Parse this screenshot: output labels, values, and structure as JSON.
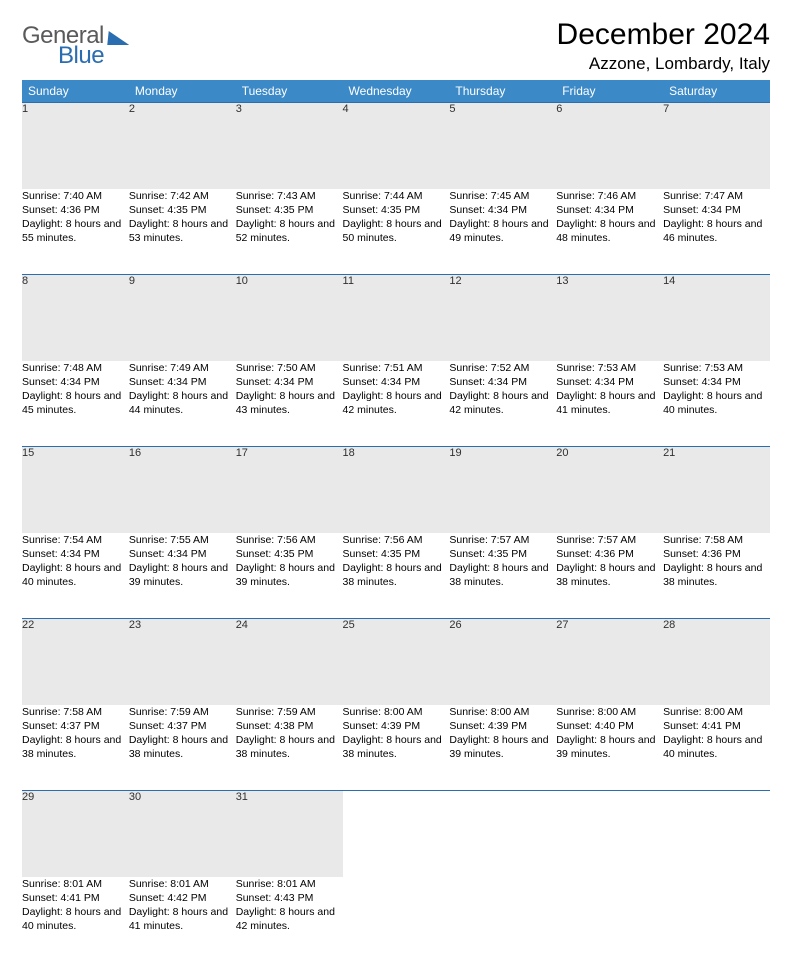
{
  "logo": {
    "word1": "General",
    "word2": "Blue"
  },
  "title": "December 2024",
  "location": "Azzone, Lombardy, Italy",
  "colors": {
    "header_bg": "#3b89c7",
    "header_text": "#ffffff",
    "rule": "#2a6db0",
    "daynum_bg": "#e9e9e9",
    "logo_gray": "#5a5a5a",
    "logo_blue": "#2a6db0"
  },
  "day_headers": [
    "Sunday",
    "Monday",
    "Tuesday",
    "Wednesday",
    "Thursday",
    "Friday",
    "Saturday"
  ],
  "weeks": [
    [
      {
        "n": "1",
        "sr": "7:40 AM",
        "ss": "4:36 PM",
        "dl": "8 hours and 55 minutes."
      },
      {
        "n": "2",
        "sr": "7:42 AM",
        "ss": "4:35 PM",
        "dl": "8 hours and 53 minutes."
      },
      {
        "n": "3",
        "sr": "7:43 AM",
        "ss": "4:35 PM",
        "dl": "8 hours and 52 minutes."
      },
      {
        "n": "4",
        "sr": "7:44 AM",
        "ss": "4:35 PM",
        "dl": "8 hours and 50 minutes."
      },
      {
        "n": "5",
        "sr": "7:45 AM",
        "ss": "4:34 PM",
        "dl": "8 hours and 49 minutes."
      },
      {
        "n": "6",
        "sr": "7:46 AM",
        "ss": "4:34 PM",
        "dl": "8 hours and 48 minutes."
      },
      {
        "n": "7",
        "sr": "7:47 AM",
        "ss": "4:34 PM",
        "dl": "8 hours and 46 minutes."
      }
    ],
    [
      {
        "n": "8",
        "sr": "7:48 AM",
        "ss": "4:34 PM",
        "dl": "8 hours and 45 minutes."
      },
      {
        "n": "9",
        "sr": "7:49 AM",
        "ss": "4:34 PM",
        "dl": "8 hours and 44 minutes."
      },
      {
        "n": "10",
        "sr": "7:50 AM",
        "ss": "4:34 PM",
        "dl": "8 hours and 43 minutes."
      },
      {
        "n": "11",
        "sr": "7:51 AM",
        "ss": "4:34 PM",
        "dl": "8 hours and 42 minutes."
      },
      {
        "n": "12",
        "sr": "7:52 AM",
        "ss": "4:34 PM",
        "dl": "8 hours and 42 minutes."
      },
      {
        "n": "13",
        "sr": "7:53 AM",
        "ss": "4:34 PM",
        "dl": "8 hours and 41 minutes."
      },
      {
        "n": "14",
        "sr": "7:53 AM",
        "ss": "4:34 PM",
        "dl": "8 hours and 40 minutes."
      }
    ],
    [
      {
        "n": "15",
        "sr": "7:54 AM",
        "ss": "4:34 PM",
        "dl": "8 hours and 40 minutes."
      },
      {
        "n": "16",
        "sr": "7:55 AM",
        "ss": "4:34 PM",
        "dl": "8 hours and 39 minutes."
      },
      {
        "n": "17",
        "sr": "7:56 AM",
        "ss": "4:35 PM",
        "dl": "8 hours and 39 minutes."
      },
      {
        "n": "18",
        "sr": "7:56 AM",
        "ss": "4:35 PM",
        "dl": "8 hours and 38 minutes."
      },
      {
        "n": "19",
        "sr": "7:57 AM",
        "ss": "4:35 PM",
        "dl": "8 hours and 38 minutes."
      },
      {
        "n": "20",
        "sr": "7:57 AM",
        "ss": "4:36 PM",
        "dl": "8 hours and 38 minutes."
      },
      {
        "n": "21",
        "sr": "7:58 AM",
        "ss": "4:36 PM",
        "dl": "8 hours and 38 minutes."
      }
    ],
    [
      {
        "n": "22",
        "sr": "7:58 AM",
        "ss": "4:37 PM",
        "dl": "8 hours and 38 minutes."
      },
      {
        "n": "23",
        "sr": "7:59 AM",
        "ss": "4:37 PM",
        "dl": "8 hours and 38 minutes."
      },
      {
        "n": "24",
        "sr": "7:59 AM",
        "ss": "4:38 PM",
        "dl": "8 hours and 38 minutes."
      },
      {
        "n": "25",
        "sr": "8:00 AM",
        "ss": "4:39 PM",
        "dl": "8 hours and 38 minutes."
      },
      {
        "n": "26",
        "sr": "8:00 AM",
        "ss": "4:39 PM",
        "dl": "8 hours and 39 minutes."
      },
      {
        "n": "27",
        "sr": "8:00 AM",
        "ss": "4:40 PM",
        "dl": "8 hours and 39 minutes."
      },
      {
        "n": "28",
        "sr": "8:00 AM",
        "ss": "4:41 PM",
        "dl": "8 hours and 40 minutes."
      }
    ],
    [
      {
        "n": "29",
        "sr": "8:01 AM",
        "ss": "4:41 PM",
        "dl": "8 hours and 40 minutes."
      },
      {
        "n": "30",
        "sr": "8:01 AM",
        "ss": "4:42 PM",
        "dl": "8 hours and 41 minutes."
      },
      {
        "n": "31",
        "sr": "8:01 AM",
        "ss": "4:43 PM",
        "dl": "8 hours and 42 minutes."
      },
      null,
      null,
      null,
      null
    ]
  ],
  "labels": {
    "sunrise": "Sunrise:",
    "sunset": "Sunset:",
    "daylight": "Daylight:"
  }
}
